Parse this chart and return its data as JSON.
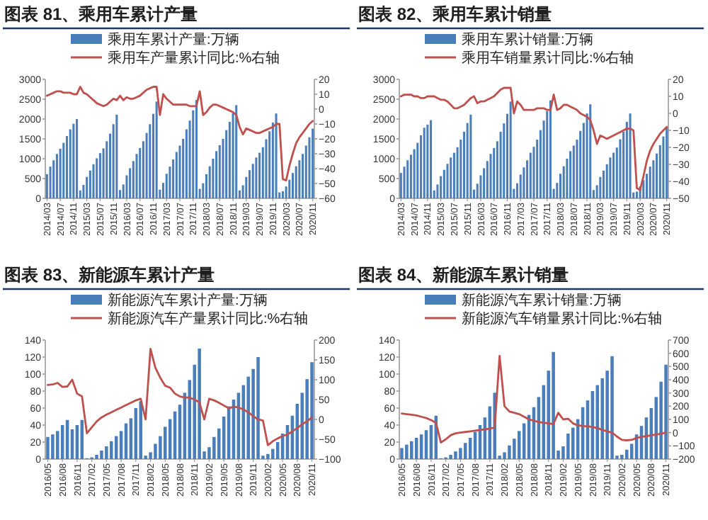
{
  "chart_data": [
    {
      "type": "bar",
      "title": "图表 81、乘用车累计产量",
      "legend": "top",
      "ylim": [
        0,
        3000
      ],
      "yticks": [
        0,
        500,
        1000,
        1500,
        2000,
        2500,
        3000
      ],
      "y2lim": [
        -60,
        20
      ],
      "y2ticks": [
        -60,
        -50,
        -40,
        -30,
        -20,
        -10,
        0,
        10,
        20
      ],
      "categories": [
        "2014/03",
        null,
        null,
        null,
        "2014/07",
        null,
        null,
        null,
        "2014/11",
        null,
        null,
        null,
        "2015/03",
        null,
        null,
        null,
        "2015/07",
        null,
        null,
        null,
        "2015/11",
        null,
        null,
        null,
        "2016/03",
        null,
        null,
        null,
        "2016/07",
        null,
        null,
        null,
        "2016/11",
        null,
        null,
        null,
        "2017/03",
        null,
        null,
        null,
        "2017/07",
        null,
        null,
        null,
        "2017/11",
        null,
        null,
        null,
        "2018/03",
        null,
        null,
        null,
        "2018/07",
        null,
        null,
        null,
        "2018/11",
        null,
        null,
        null,
        "2019/03",
        null,
        null,
        null,
        "2019/07",
        null,
        null,
        null,
        "2019/11",
        null,
        null,
        null,
        "2020/03",
        null,
        null,
        null,
        "2020/07",
        null,
        null,
        null,
        "2020/11"
      ],
      "series": [
        {
          "name": "乘用车累计产量:万辆",
          "color": "#4a7ebb",
          "values": [
            610,
            800,
            960,
            1120,
            1250,
            1400,
            1570,
            1740,
            1880,
            2000,
            200,
            340,
            540,
            700,
            860,
            1010,
            1140,
            1260,
            1440,
            1630,
            1870,
            2110,
            210,
            350,
            580,
            760,
            940,
            1120,
            1270,
            1440,
            1650,
            1870,
            2130,
            2440,
            220,
            390,
            620,
            800,
            980,
            1170,
            1330,
            1500,
            1740,
            1960,
            2220,
            2480,
            240,
            380,
            610,
            810,
            1000,
            1190,
            1340,
            1500,
            1720,
            1930,
            2150,
            2350,
            200,
            330,
            540,
            710,
            870,
            1030,
            1150,
            1290,
            1490,
            1690,
            1910,
            2140,
            150,
            180,
            300,
            470,
            640,
            810,
            960,
            1120,
            1330,
            1540,
            1760
          ]
        },
        {
          "name": "乘用车产量累计同比:%右轴",
          "type": "line",
          "axis": "y2",
          "color": "#c0504d",
          "values": [
            9,
            10,
            11,
            12,
            12,
            11,
            11,
            11,
            10,
            10,
            15,
            11,
            10,
            8,
            6,
            4,
            3,
            2,
            3,
            5,
            7,
            6,
            9,
            6,
            8,
            7,
            7,
            8,
            9,
            11,
            13,
            14,
            15,
            15,
            -4,
            10,
            7,
            5,
            3,
            3,
            3,
            3,
            3,
            2,
            2,
            2,
            12,
            -4,
            -2,
            1,
            3,
            3,
            2,
            1,
            0,
            -1,
            -2,
            -4,
            -12,
            -17,
            -13,
            -14,
            -15,
            -16,
            -16,
            -15,
            -14,
            -13,
            -12,
            -10,
            -10,
            -47,
            -48,
            -38,
            -30,
            -23,
            -19,
            -16,
            -13,
            -10,
            -8
          ]
        }
      ]
    },
    {
      "type": "bar",
      "title": "图表 82、乘用车累计销量",
      "legend": "top",
      "ylim": [
        0,
        3000
      ],
      "yticks": [
        0,
        500,
        1000,
        1500,
        2000,
        2500,
        3000
      ],
      "y2lim": [
        -50,
        20
      ],
      "y2ticks": [
        -50,
        -40,
        -30,
        -20,
        -10,
        0,
        10,
        20
      ],
      "categories": [
        "2014/03",
        null,
        null,
        null,
        "2014/07",
        null,
        null,
        null,
        "2014/11",
        null,
        null,
        null,
        "2015/03",
        null,
        null,
        null,
        "2015/07",
        null,
        null,
        null,
        "2015/11",
        null,
        null,
        null,
        "2016/03",
        null,
        null,
        null,
        "2016/07",
        null,
        null,
        null,
        "2016/11",
        null,
        null,
        null,
        "2017/03",
        null,
        null,
        null,
        "2017/07",
        null,
        null,
        null,
        "2017/11",
        null,
        null,
        null,
        "2018/03",
        null,
        null,
        null,
        "2018/07",
        null,
        null,
        null,
        "2018/11",
        null,
        null,
        null,
        "2019/03",
        null,
        null,
        null,
        "2019/07",
        null,
        null,
        null,
        "2019/11",
        null,
        null,
        null,
        "2020/03",
        null,
        null,
        null,
        "2020/07",
        null,
        null,
        null,
        "2020/11"
      ],
      "series": [
        {
          "name": "乘用车累计销量:万辆",
          "color": "#4a7ebb",
          "values": [
            640,
            800,
            960,
            1100,
            1240,
            1400,
            1590,
            1780,
            1860,
            1970,
            200,
            350,
            560,
            720,
            870,
            1030,
            1150,
            1290,
            1480,
            1680,
            1900,
            2110,
            220,
            370,
            580,
            760,
            940,
            1120,
            1270,
            1440,
            1680,
            1890,
            2130,
            2440,
            240,
            380,
            600,
            780,
            960,
            1150,
            1300,
            1480,
            1720,
            1960,
            2200,
            2470,
            240,
            390,
            620,
            810,
            1000,
            1190,
            1330,
            1480,
            1700,
            1900,
            2140,
            2370,
            210,
            330,
            540,
            700,
            860,
            1030,
            1150,
            1280,
            1490,
            1680,
            1930,
            2140,
            150,
            170,
            300,
            460,
            620,
            800,
            960,
            1130,
            1340,
            1560,
            1790
          ]
        },
        {
          "name": "乘用车销量累计同比:%右轴",
          "type": "line",
          "axis": "y2",
          "color": "#c0504d",
          "values": [
            10,
            11,
            11,
            11,
            10,
            10,
            9,
            9,
            10,
            10,
            10,
            9,
            8,
            8,
            7,
            5,
            3,
            3,
            4,
            5,
            7,
            9,
            10,
            6,
            7,
            7,
            8,
            9,
            10,
            12,
            14,
            15,
            15,
            15,
            0,
            7,
            5,
            2,
            2,
            2,
            2,
            3,
            3,
            3,
            2,
            2,
            11,
            2,
            3,
            5,
            5,
            4,
            3,
            2,
            0,
            -1,
            -2,
            -4,
            -10,
            -18,
            -13,
            -14,
            -15,
            -14,
            -13,
            -12,
            -11,
            -10,
            -9,
            -9,
            -10,
            -44,
            -45,
            -37,
            -28,
            -22,
            -18,
            -15,
            -12,
            -10,
            -8
          ]
        }
      ]
    },
    {
      "type": "bar",
      "title": "图表 83、新能源车累计产量",
      "legend": "top",
      "ylim": [
        0,
        140
      ],
      "yticks": [
        0,
        20,
        40,
        60,
        80,
        100,
        120,
        140
      ],
      "y2lim": [
        -100,
        200
      ],
      "y2ticks": [
        -100,
        -50,
        0,
        50,
        100,
        150,
        200
      ],
      "categories": [
        "2016/05",
        null,
        null,
        "2016/08",
        null,
        null,
        "2016/11",
        null,
        null,
        "2017/02",
        null,
        null,
        "2017/05",
        null,
        null,
        "2017/08",
        null,
        null,
        "2017/11",
        null,
        null,
        "2018/02",
        null,
        null,
        "2018/05",
        null,
        null,
        "2018/08",
        null,
        null,
        "2018/11",
        null,
        null,
        "2019/02",
        null,
        null,
        "2019/05",
        null,
        null,
        "2019/08",
        null,
        null,
        "2019/11",
        null,
        null,
        "2020/02",
        null,
        null,
        "2020/05",
        null,
        null,
        "2020/08",
        null,
        null,
        "2020/11"
      ],
      "series": [
        {
          "name": "新能源汽车累计产量:万辆",
          "color": "#4a7ebb",
          "values": [
            26,
            29,
            33,
            40,
            46,
            35,
            40,
            46,
            1,
            2,
            5,
            10,
            15,
            21,
            27,
            33,
            42,
            48,
            60,
            68,
            4,
            8,
            18,
            27,
            38,
            47,
            56,
            64,
            78,
            93,
            111,
            130,
            9,
            14,
            26,
            36,
            50,
            62,
            70,
            78,
            87,
            97,
            106,
            120,
            4,
            6,
            12,
            20,
            30,
            40,
            51,
            65,
            78,
            94,
            114
          ]
        },
        {
          "name": "新能源汽车产量累计同比:%右轴",
          "type": "line",
          "axis": "y2",
          "color": "#c0504d",
          "values": [
            87,
            88,
            92,
            82,
            83,
            100,
            65,
            58,
            -35,
            -20,
            -5,
            5,
            12,
            18,
            24,
            30,
            36,
            42,
            48,
            52,
            0,
            178,
            130,
            105,
            85,
            80,
            65,
            58,
            55,
            55,
            50,
            43,
            0,
            52,
            48,
            42,
            35,
            28,
            32,
            30,
            25,
            18,
            8,
            0,
            -3,
            -65,
            -55,
            -48,
            -42,
            -38,
            -30,
            -22,
            -12,
            -5,
            5
          ]
        }
      ]
    },
    {
      "type": "bar",
      "title": "图表 84、新能源车累计销量",
      "legend": "top",
      "ylim": [
        0,
        140
      ],
      "yticks": [
        0,
        20,
        40,
        60,
        80,
        100,
        120,
        140
      ],
      "y2lim": [
        -200,
        700
      ],
      "y2ticks": [
        -200,
        -100,
        0,
        100,
        200,
        300,
        400,
        500,
        600,
        700
      ],
      "categories": [
        "2016/05",
        null,
        null,
        "2016/08",
        null,
        null,
        "2016/11",
        null,
        null,
        "2017/02",
        null,
        null,
        "2017/05",
        null,
        null,
        "2017/08",
        null,
        null,
        "2017/11",
        null,
        null,
        "2018/02",
        null,
        null,
        "2018/05",
        null,
        null,
        "2018/08",
        null,
        null,
        "2018/11",
        null,
        null,
        "2019/02",
        null,
        null,
        "2019/05",
        null,
        null,
        "2019/08",
        null,
        null,
        "2019/11",
        null,
        null,
        "2020/02",
        null,
        null,
        "2020/05",
        null,
        null,
        "2020/08",
        null,
        null,
        "2020/11"
      ],
      "series": [
        {
          "name": "新能源汽车累计销量:万辆",
          "color": "#4a7ebb",
          "values": [
            13,
            17,
            21,
            25,
            29,
            34,
            40,
            51,
            1,
            2,
            5,
            9,
            13,
            19,
            25,
            32,
            40,
            49,
            62,
            78,
            4,
            8,
            16,
            24,
            33,
            42,
            52,
            61,
            73,
            87,
            104,
            126,
            10,
            15,
            30,
            37,
            47,
            61,
            69,
            80,
            87,
            95,
            104,
            121,
            4,
            5,
            11,
            18,
            29,
            39,
            49,
            60,
            73,
            91,
            111
          ]
        },
        {
          "name": "新能源汽车销量累计同比:%右轴",
          "type": "line",
          "axis": "y2",
          "color": "#c0504d",
          "values": [
            145,
            140,
            135,
            130,
            120,
            110,
            95,
            75,
            -75,
            -50,
            -20,
            -5,
            0,
            5,
            10,
            15,
            20,
            25,
            30,
            40,
            580,
            200,
            160,
            150,
            140,
            120,
            100,
            90,
            80,
            75,
            70,
            65,
            150,
            100,
            105,
            70,
            55,
            50,
            48,
            42,
            35,
            20,
            10,
            0,
            -30,
            -55,
            -58,
            -55,
            -40,
            -32,
            -26,
            -20,
            -15,
            -8,
            0
          ]
        }
      ]
    }
  ]
}
